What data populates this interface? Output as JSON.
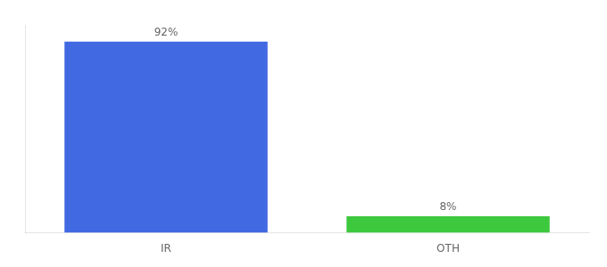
{
  "chart_data": {
    "type": "bar",
    "categories": [
      "IR",
      "OTH"
    ],
    "values": [
      92,
      8
    ],
    "colors": [
      "#4169e1",
      "#3dc83d"
    ],
    "value_labels": [
      "92%",
      "8%"
    ],
    "data_labels": true,
    "ylim": [
      0,
      100
    ],
    "tick_labels": "x",
    "grid": false
  }
}
